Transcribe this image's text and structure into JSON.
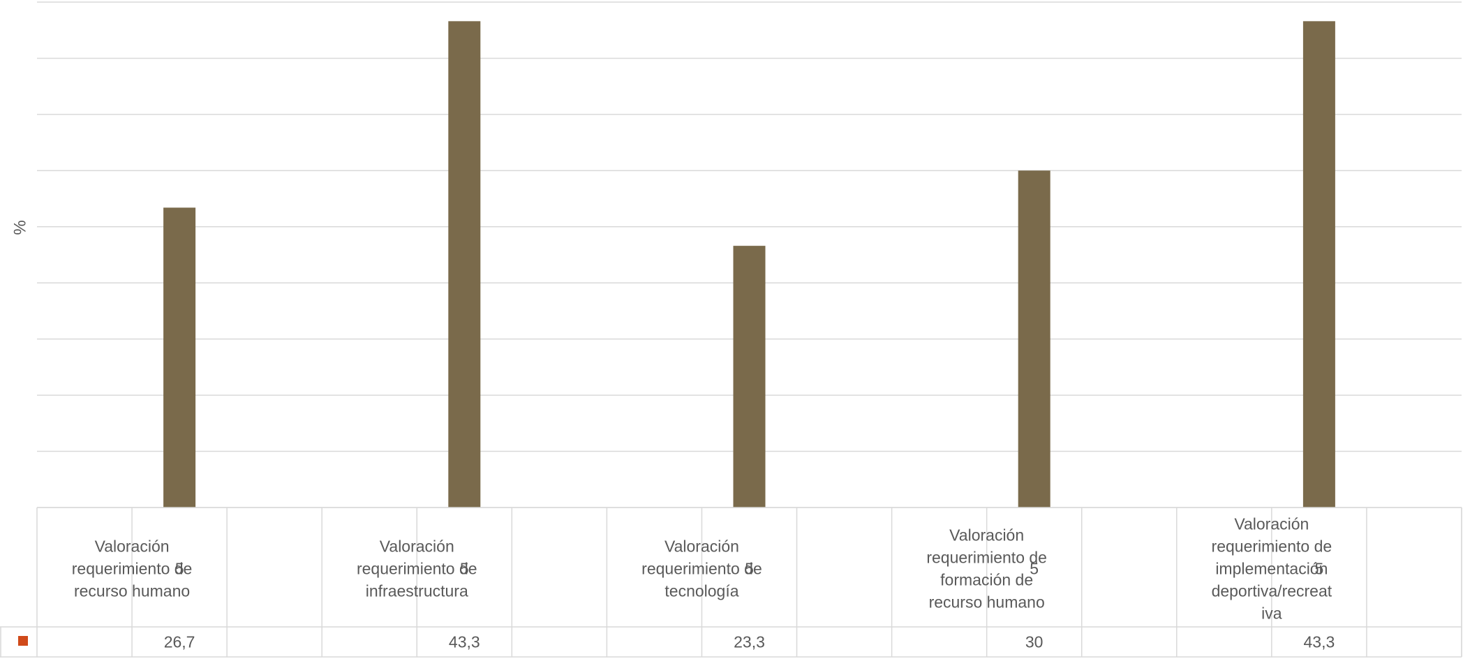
{
  "chart_data": {
    "type": "bar",
    "ylabel": "%",
    "ylim": [
      0,
      45
    ],
    "grid": true,
    "legend": "in data table, left of value row",
    "colors": {
      "bar": "#7A6A4B",
      "legend_marker": "#D04A1A",
      "grid": "#D9D9D9",
      "table_border": "#D9D9D9",
      "text": "#595959"
    },
    "groups": [
      {
        "lines": [
          "Valoración",
          "requerimiento de",
          "recurso humano"
        ],
        "subcategory": "5",
        "value": 26.7,
        "label": "26,7"
      },
      {
        "lines": [
          "Valoración",
          "requerimiento de",
          "infraestructura"
        ],
        "subcategory": "5",
        "value": 43.3,
        "label": "43,3"
      },
      {
        "lines": [
          "Valoración",
          "requerimiento de",
          "tecnología"
        ],
        "subcategory": "5",
        "value": 23.3,
        "label": "23,3"
      },
      {
        "lines": [
          "Valoración",
          "requerimiento de",
          "formación de",
          "recurso humano"
        ],
        "subcategory": "5",
        "value": 30,
        "label": "30"
      },
      {
        "lines": [
          "Valoración",
          "requerimiento de",
          "implementación",
          "deportiva/recreat",
          "iva"
        ],
        "subcategory": "5",
        "value": 43.3,
        "label": "43,3"
      }
    ]
  }
}
